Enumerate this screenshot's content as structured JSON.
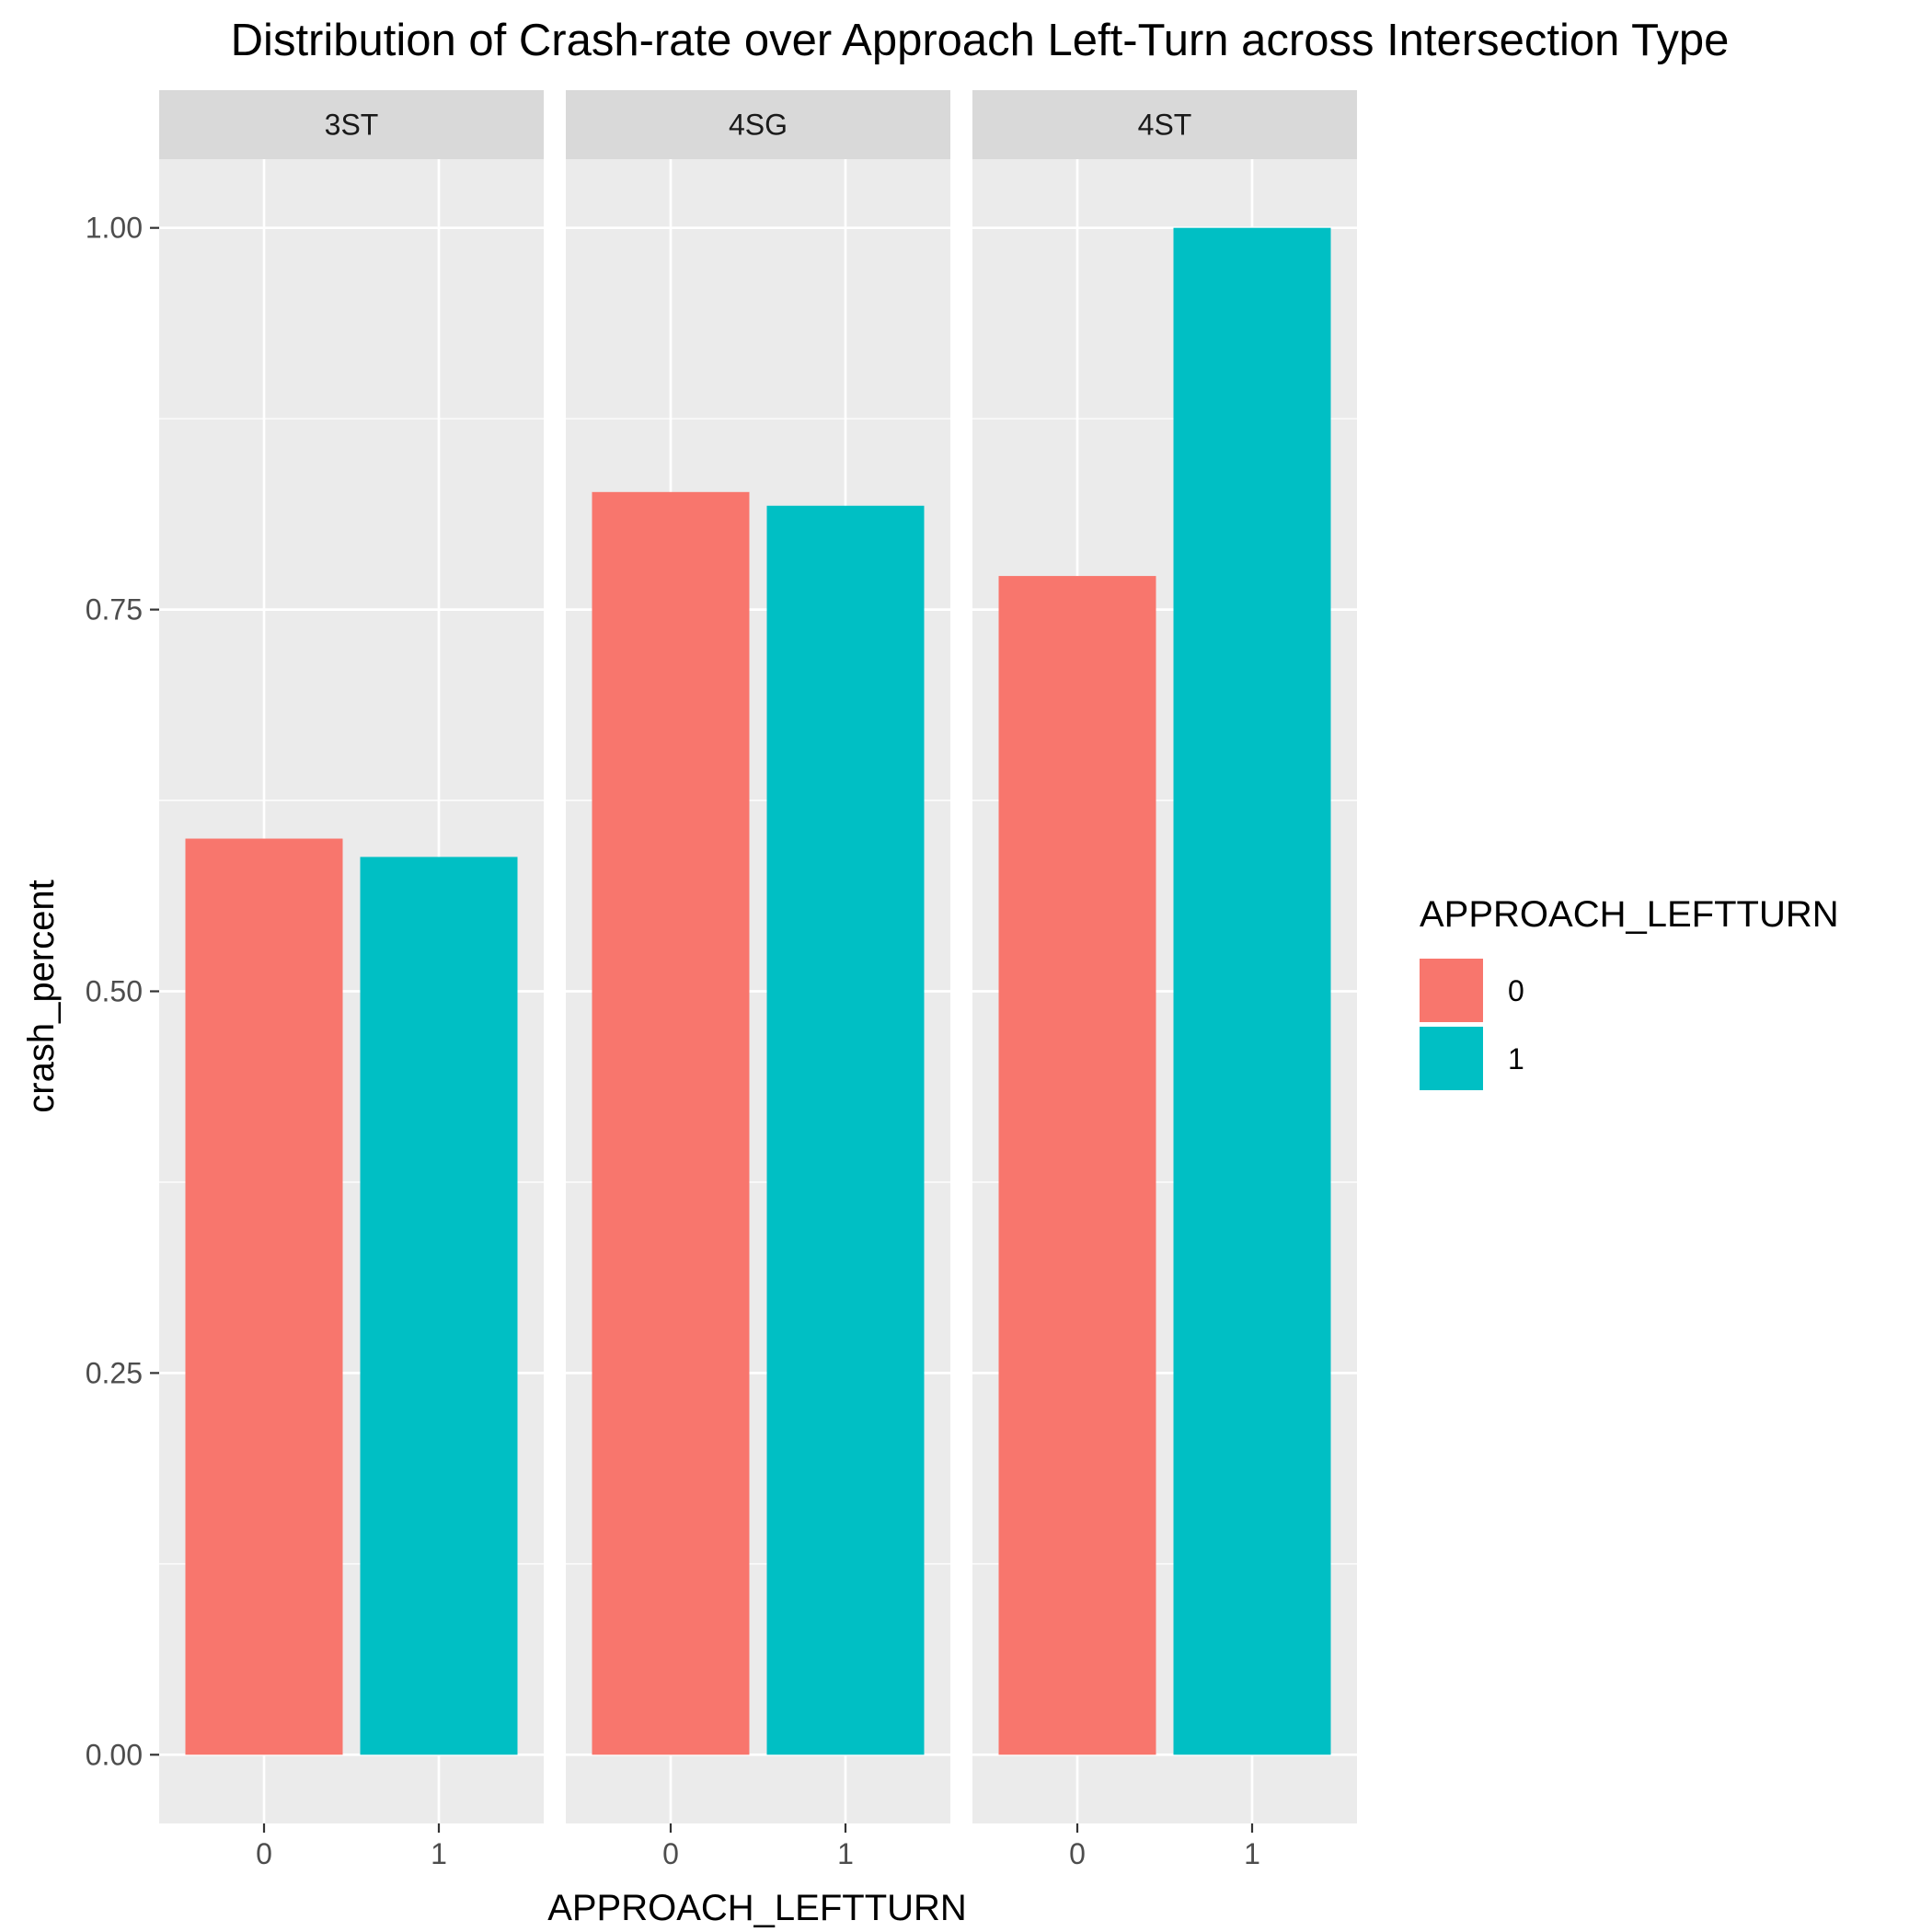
{
  "chart_data": {
    "type": "bar",
    "title": "Distribution of Crash-rate over Approach Left-Turn across Intersection Type",
    "xlabel": "APPROACH_LEFTTURN",
    "ylabel": "crash_percent",
    "ylim": [
      -0.045,
      1.045
    ],
    "y_ticks": [
      0.0,
      0.25,
      0.5,
      0.75,
      1.0
    ],
    "y_tick_labels": [
      "0.00",
      "0.25",
      "0.50",
      "0.75",
      "1.00"
    ],
    "categories": [
      "0",
      "1"
    ],
    "grid": true,
    "legend": {
      "title": "APPROACH_LEFTTURN",
      "placement": "right",
      "entries": [
        {
          "label": "0",
          "color": "#F8766D"
        },
        {
          "label": "1",
          "color": "#00BFC4"
        }
      ]
    },
    "facets": [
      {
        "name": "3ST",
        "values": [
          0.6,
          0.588
        ]
      },
      {
        "name": "4SG",
        "values": [
          0.827,
          0.818
        ]
      },
      {
        "name": "4ST",
        "values": [
          0.772,
          1.0
        ]
      }
    ]
  },
  "colors": {
    "panel_bg": "#EBEBEB",
    "strip_bg": "#D9D9D9",
    "grid": "#FFFFFF",
    "tick": "#333333"
  }
}
